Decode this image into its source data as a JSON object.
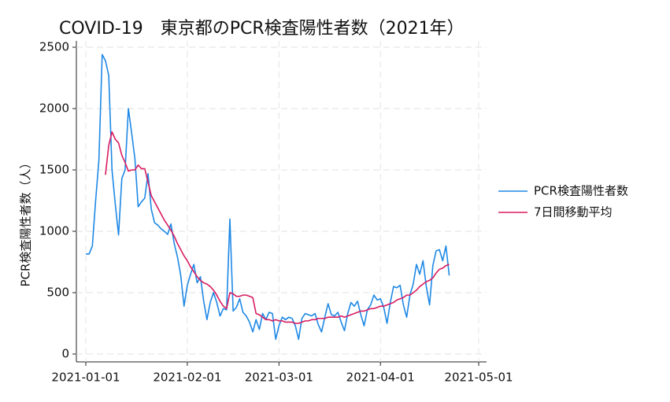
{
  "chart_data": {
    "type": "line",
    "title": "COVID-19　東京都のPCR検査陽性者数（2021年）",
    "y_label": "PCR検査陽性者数（人）",
    "x": [
      "2021-01-01",
      "2021-01-02",
      "2021-01-03",
      "2021-01-04",
      "2021-01-05",
      "2021-01-06",
      "2021-01-07",
      "2021-01-08",
      "2021-01-09",
      "2021-01-10",
      "2021-01-11",
      "2021-01-12",
      "2021-01-13",
      "2021-01-14",
      "2021-01-15",
      "2021-01-16",
      "2021-01-17",
      "2021-01-18",
      "2021-01-19",
      "2021-01-20",
      "2021-01-21",
      "2021-01-22",
      "2021-01-23",
      "2021-01-24",
      "2021-01-25",
      "2021-01-26",
      "2021-01-27",
      "2021-01-28",
      "2021-01-29",
      "2021-01-30",
      "2021-01-31",
      "2021-02-01",
      "2021-02-02",
      "2021-02-03",
      "2021-02-04",
      "2021-02-05",
      "2021-02-06",
      "2021-02-07",
      "2021-02-08",
      "2021-02-09",
      "2021-02-10",
      "2021-02-11",
      "2021-02-12",
      "2021-02-13",
      "2021-02-14",
      "2021-02-15",
      "2021-02-16",
      "2021-02-17",
      "2021-02-18",
      "2021-02-19",
      "2021-02-20",
      "2021-02-21",
      "2021-02-22",
      "2021-02-23",
      "2021-02-24",
      "2021-02-25",
      "2021-02-26",
      "2021-02-27",
      "2021-02-28",
      "2021-03-01",
      "2021-03-02",
      "2021-03-03",
      "2021-03-04",
      "2021-03-05",
      "2021-03-06",
      "2021-03-07",
      "2021-03-08",
      "2021-03-09",
      "2021-03-10",
      "2021-03-11",
      "2021-03-12",
      "2021-03-13",
      "2021-03-14",
      "2021-03-15",
      "2021-03-16",
      "2021-03-17",
      "2021-03-18",
      "2021-03-19",
      "2021-03-20",
      "2021-03-21",
      "2021-03-22",
      "2021-03-23",
      "2021-03-24",
      "2021-03-25",
      "2021-03-26",
      "2021-03-27",
      "2021-03-28",
      "2021-03-29",
      "2021-03-30",
      "2021-03-31",
      "2021-04-01",
      "2021-04-02",
      "2021-04-03",
      "2021-04-04",
      "2021-04-05",
      "2021-04-06",
      "2021-04-07",
      "2021-04-08",
      "2021-04-09",
      "2021-04-10",
      "2021-04-11",
      "2021-04-12",
      "2021-04-13",
      "2021-04-14",
      "2021-04-15",
      "2021-04-16",
      "2021-04-17",
      "2021-04-18",
      "2021-04-19",
      "2021-04-20",
      "2021-04-21",
      "2021-04-22"
    ],
    "series": [
      {
        "name": "PCR検査陽性者数",
        "color": "#1e88e5",
        "values": [
          815,
          815,
          880,
          1250,
          1580,
          2440,
          2390,
          2270,
          1500,
          1220,
          970,
          1430,
          1500,
          2000,
          1800,
          1590,
          1200,
          1240,
          1270,
          1470,
          1180,
          1070,
          1050,
          1020,
          1000,
          975,
          1060,
          900,
          790,
          640,
          390,
          560,
          650,
          730,
          580,
          630,
          430,
          280,
          420,
          500,
          420,
          310,
          370,
          360,
          1100,
          350,
          380,
          450,
          340,
          310,
          260,
          180,
          280,
          200,
          330,
          280,
          340,
          330,
          120,
          230,
          300,
          280,
          300,
          290,
          230,
          120,
          290,
          330,
          320,
          310,
          330,
          240,
          180,
          300,
          410,
          320,
          310,
          340,
          260,
          190,
          330,
          420,
          390,
          430,
          320,
          230,
          360,
          400,
          480,
          440,
          450,
          380,
          250,
          420,
          550,
          540,
          560,
          400,
          300,
          480,
          570,
          730,
          650,
          760,
          550,
          400,
          720,
          840,
          850,
          760,
          880,
          640
        ]
      },
      {
        "name": "7日間移動平均",
        "color": "#d81b60",
        "values": [
          null,
          null,
          null,
          null,
          null,
          null,
          1460,
          1700,
          1810,
          1750,
          1720,
          1620,
          1560,
          1490,
          1500,
          1500,
          1540,
          1510,
          1510,
          1400,
          1290,
          1240,
          1190,
          1140,
          1090,
          1050,
          1010,
          960,
          900,
          850,
          800,
          760,
          710,
          670,
          630,
          600,
          580,
          570,
          550,
          520,
          480,
          430,
          390,
          370,
          500,
          490,
          470,
          470,
          480,
          480,
          470,
          460,
          330,
          320,
          300,
          280,
          280,
          270,
          280,
          270,
          270,
          260,
          260,
          260,
          250,
          250,
          260,
          270,
          270,
          280,
          280,
          290,
          290,
          290,
          300,
          300,
          300,
          300,
          310,
          300,
          310,
          320,
          330,
          340,
          350,
          350,
          360,
          370,
          370,
          380,
          390,
          390,
          400,
          410,
          420,
          440,
          450,
          460,
          480,
          480,
          500,
          520,
          550,
          570,
          590,
          600,
          620,
          660,
          690,
          700,
          720,
          730
        ]
      }
    ],
    "xlim": [
      "2021-01-01",
      "2021-05-01"
    ],
    "xticks": [
      "2021-01-01",
      "2021-02-01",
      "2021-03-01",
      "2021-04-01",
      "2021-05-01"
    ],
    "ylim": [
      0,
      2500
    ],
    "yticks": [
      0,
      500,
      1000,
      1500,
      2000,
      2500
    ],
    "grid": true,
    "legend": "right"
  }
}
